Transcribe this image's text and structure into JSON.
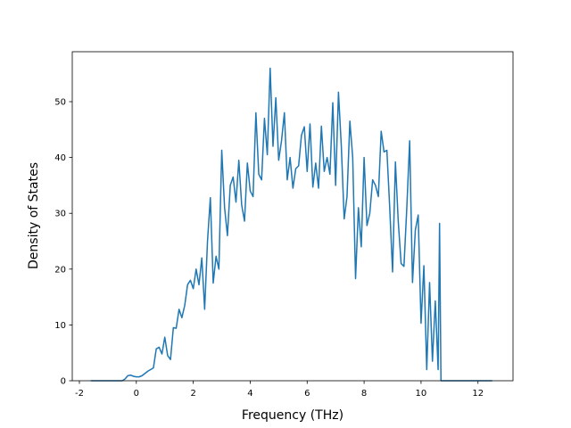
{
  "chart_data": {
    "type": "line",
    "xlabel": "Frequency (THz)",
    "ylabel": "Density of States",
    "xlim": [
      -2.25,
      13.23
    ],
    "ylim": [
      0,
      58.95
    ],
    "xticks": [
      -2,
      0,
      2,
      4,
      6,
      8,
      10,
      12
    ],
    "yticks": [
      0,
      10,
      20,
      30,
      40,
      50
    ],
    "x": [
      -1.6,
      -0.5,
      -0.4,
      -0.3,
      -0.2,
      -0.1,
      0,
      0.1,
      0.2,
      0.3,
      0.4,
      0.5,
      0.6,
      0.7,
      0.8,
      0.9,
      1.0,
      1.1,
      1.2,
      1.3,
      1.4,
      1.5,
      1.6,
      1.7,
      1.8,
      1.9,
      2.0,
      2.1,
      2.2,
      2.3,
      2.4,
      2.5,
      2.6,
      2.7,
      2.8,
      2.9,
      3.0,
      3.1,
      3.2,
      3.3,
      3.4,
      3.5,
      3.6,
      3.7,
      3.8,
      3.9,
      4.0,
      4.1,
      4.2,
      4.3,
      4.4,
      4.5,
      4.6,
      4.7,
      4.8,
      4.9,
      5.0,
      5.1,
      5.2,
      5.3,
      5.4,
      5.5,
      5.6,
      5.7,
      5.8,
      5.9,
      6.0,
      6.1,
      6.2,
      6.3,
      6.4,
      6.5,
      6.6,
      6.7,
      6.8,
      6.9,
      7.0,
      7.1,
      7.2,
      7.3,
      7.4,
      7.5,
      7.6,
      7.7,
      7.8,
      7.9,
      8.0,
      8.1,
      8.2,
      8.3,
      8.4,
      8.5,
      8.6,
      8.7,
      8.8,
      8.9,
      9.0,
      9.1,
      9.2,
      9.3,
      9.4,
      9.5,
      9.6,
      9.7,
      9.8,
      9.9,
      10.0,
      10.1,
      10.2,
      10.3,
      10.4,
      10.5,
      10.6,
      10.65,
      10.7,
      12.5
    ],
    "series": [
      {
        "color": "#1f77b4",
        "values": [
          0,
          0,
          0.3,
          0.9,
          1.0,
          0.8,
          0.7,
          0.7,
          0.9,
          1.3,
          1.7,
          2.0,
          2.3,
          5.7,
          6.0,
          4.8,
          7.8,
          4.5,
          3.8,
          9.5,
          9.4,
          12.8,
          11.3,
          13.5,
          17.2,
          18.0,
          16.5,
          20.0,
          17.2,
          22.0,
          12.8,
          25.0,
          32.8,
          17.5,
          22.3,
          20.0,
          41.3,
          31.0,
          26.0,
          35.0,
          36.5,
          32.0,
          39.5,
          31.5,
          28.6,
          39.0,
          34.0,
          33.0,
          48.0,
          37.0,
          36.0,
          47.0,
          40.5,
          56.0,
          42.0,
          50.7,
          39.5,
          43.0,
          48.0,
          36.0,
          40.0,
          34.5,
          38.0,
          38.5,
          44.0,
          45.5,
          37.5,
          46.0,
          34.7,
          39.0,
          34.5,
          45.6,
          37.5,
          40.0,
          37.0,
          49.8,
          35.0,
          51.7,
          42.0,
          29.0,
          33.0,
          46.5,
          40.0,
          18.3,
          31.0,
          24.0,
          40.0,
          27.8,
          30.0,
          36.0,
          35.0,
          33.0,
          44.7,
          41.0,
          41.3,
          31.0,
          19.5,
          39.2,
          28.5,
          21.0,
          20.5,
          31.0,
          43.0,
          17.6,
          27.0,
          29.7,
          10.3,
          20.6,
          2.0,
          17.6,
          3.5,
          14.3,
          2.0,
          28.2,
          0,
          0
        ]
      }
    ]
  }
}
